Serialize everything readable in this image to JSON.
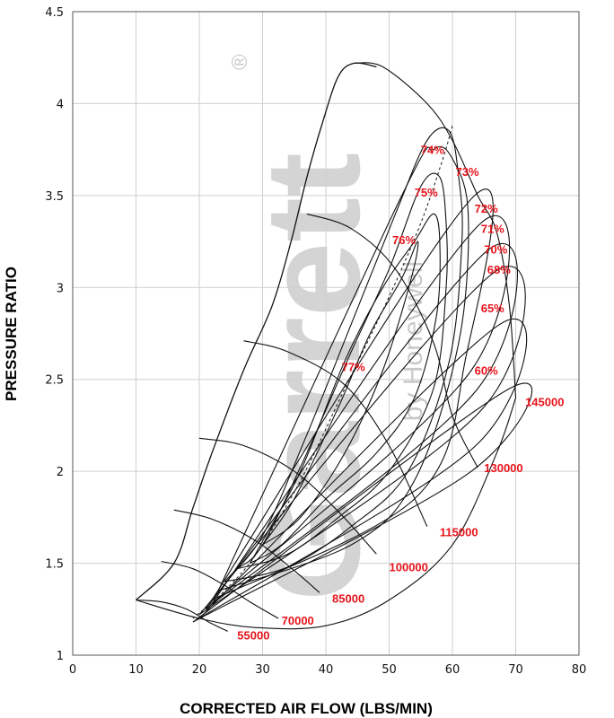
{
  "chart_data": {
    "type": "line",
    "title": "",
    "xlabel": "CORRECTED AIR FLOW (LBS/MIN)",
    "ylabel": "PRESSURE RATIO",
    "xlim": [
      0,
      80
    ],
    "ylim": [
      1,
      4.5
    ],
    "xticks": [
      0,
      10,
      20,
      30,
      40,
      50,
      60,
      70,
      80
    ],
    "yticks": [
      1,
      1.5,
      2,
      2.5,
      3,
      3.5,
      4,
      4.5
    ],
    "grid": true,
    "watermark": "Garrett by Honeywell",
    "watermark_mark": "®",
    "surge_line": [
      [
        10,
        1.3
      ],
      [
        16,
        1.5
      ],
      [
        19,
        1.8
      ],
      [
        22,
        2.1
      ],
      [
        27,
        2.55
      ],
      [
        31.5,
        2.9
      ],
      [
        34.5,
        3.25
      ],
      [
        37,
        3.6
      ],
      [
        39.5,
        3.9
      ],
      [
        42,
        4.15
      ],
      [
        44.5,
        4.22
      ],
      [
        48,
        4.2
      ]
    ],
    "speed_lines": [
      {
        "label": "55000",
        "points": [
          [
            10,
            1.3
          ],
          [
            14,
            1.29
          ],
          [
            18,
            1.25
          ],
          [
            21.5,
            1.18
          ],
          [
            24.5,
            1.13
          ]
        ]
      },
      {
        "label": "70000",
        "points": [
          [
            14,
            1.51
          ],
          [
            19,
            1.47
          ],
          [
            24,
            1.38
          ],
          [
            28,
            1.29
          ],
          [
            32.5,
            1.2
          ]
        ]
      },
      {
        "label": "85000",
        "points": [
          [
            16,
            1.79
          ],
          [
            22,
            1.74
          ],
          [
            29,
            1.62
          ],
          [
            35,
            1.46
          ],
          [
            39,
            1.34
          ]
        ]
      },
      {
        "label": "100000",
        "points": [
          [
            20,
            2.18
          ],
          [
            27,
            2.14
          ],
          [
            35,
            2.0
          ],
          [
            42,
            1.78
          ],
          [
            48,
            1.55
          ]
        ]
      },
      {
        "label": "115000",
        "points": [
          [
            27,
            2.71
          ],
          [
            34,
            2.65
          ],
          [
            43,
            2.47
          ],
          [
            50,
            2.14
          ],
          [
            56,
            1.7
          ]
        ]
      },
      {
        "label": "130000",
        "points": [
          [
            37,
            3.4
          ],
          [
            44,
            3.32
          ],
          [
            51,
            3.1
          ],
          [
            57,
            2.7
          ],
          [
            60,
            2.3
          ],
          [
            64,
            2.02
          ]
        ]
      },
      {
        "label": "145000",
        "points": [
          [
            44.5,
            4.22
          ],
          [
            49,
            4.2
          ],
          [
            56,
            4.0
          ],
          [
            60,
            3.8
          ],
          [
            64,
            3.5
          ],
          [
            67,
            3.3
          ],
          [
            69,
            2.9
          ],
          [
            70,
            2.4
          ]
        ]
      }
    ],
    "efficiency_islands": [
      {
        "label": "77%",
        "points": [
          [
            30,
            1.6
          ],
          [
            35,
            1.85
          ],
          [
            42,
            2.35
          ],
          [
            47,
            2.75
          ],
          [
            52,
            3.05
          ],
          [
            54.5,
            3.25
          ],
          [
            53.5,
            3.05
          ],
          [
            49,
            2.55
          ],
          [
            43,
            2.1
          ],
          [
            36,
            1.75
          ],
          [
            30,
            1.6
          ]
        ]
      },
      {
        "label": "76%",
        "points": [
          [
            28,
            1.5
          ],
          [
            30,
            1.62
          ],
          [
            36,
            2.0
          ],
          [
            43,
            2.6
          ],
          [
            49,
            3.0
          ],
          [
            54,
            3.25
          ],
          [
            57,
            3.4
          ],
          [
            58,
            3.25
          ],
          [
            57.5,
            2.85
          ],
          [
            54,
            2.4
          ],
          [
            48,
            2.1
          ],
          [
            40,
            1.85
          ],
          [
            33,
            1.6
          ],
          [
            28,
            1.5
          ]
        ]
      },
      {
        "label": "75%",
        "points": [
          [
            26,
            1.47
          ],
          [
            30,
            1.6
          ],
          [
            37,
            2.1
          ],
          [
            44,
            2.65
          ],
          [
            50,
            3.1
          ],
          [
            55,
            3.55
          ],
          [
            58,
            3.6
          ],
          [
            59,
            3.35
          ],
          [
            59,
            3.0
          ],
          [
            57,
            2.45
          ],
          [
            50,
            2.0
          ],
          [
            42,
            1.75
          ],
          [
            34,
            1.55
          ],
          [
            26,
            1.47
          ]
        ]
      },
      {
        "label": "74%",
        "points": [
          [
            24,
            1.4
          ],
          [
            30,
            1.65
          ],
          [
            37,
            2.2
          ],
          [
            44,
            2.8
          ],
          [
            51,
            3.4
          ],
          [
            56,
            3.8
          ],
          [
            59.5,
            3.85
          ],
          [
            61,
            3.6
          ],
          [
            61.5,
            3.25
          ],
          [
            59.5,
            2.6
          ],
          [
            53,
            2.0
          ],
          [
            44,
            1.7
          ],
          [
            34,
            1.48
          ],
          [
            24,
            1.4
          ]
        ]
      },
      {
        "label": "73%",
        "points": [
          [
            23,
            1.35
          ],
          [
            52,
            3.5
          ],
          [
            57,
            3.75
          ],
          [
            60,
            3.7
          ],
          [
            62.5,
            3.4
          ],
          [
            61,
            2.7
          ],
          [
            54,
            1.95
          ],
          [
            44,
            1.6
          ],
          [
            23,
            1.35
          ]
        ]
      },
      {
        "label": "72%",
        "points": [
          [
            22,
            1.3
          ],
          [
            63.5,
            3.5
          ],
          [
            62,
            2.6
          ],
          [
            54,
            1.85
          ],
          [
            22,
            1.3
          ]
        ]
      },
      {
        "label": "71%",
        "points": [
          [
            22,
            1.28
          ],
          [
            64.5,
            3.35
          ],
          [
            63,
            2.55
          ],
          [
            22,
            1.28
          ]
        ]
      },
      {
        "label": "70%",
        "points": [
          [
            21,
            1.25
          ],
          [
            65.5,
            3.2
          ],
          [
            64,
            2.45
          ],
          [
            21,
            1.25
          ]
        ]
      },
      {
        "label": "68%",
        "points": [
          [
            20,
            1.22
          ],
          [
            66.5,
            3.08
          ],
          [
            65,
            2.35
          ],
          [
            20,
            1.22
          ]
        ]
      },
      {
        "label": "65%",
        "points": [
          [
            20,
            1.2
          ],
          [
            67.5,
            2.8
          ],
          [
            64,
            2.15
          ],
          [
            20,
            1.2
          ]
        ]
      },
      {
        "label": "60%",
        "points": [
          [
            19,
            1.18
          ],
          [
            69,
            2.45
          ],
          [
            63,
            2.0
          ],
          [
            19,
            1.18
          ]
        ]
      }
    ],
    "speed_label_positions": [
      {
        "label": "55000",
        "x": 26,
        "y": 1.11
      },
      {
        "label": "70000",
        "x": 33,
        "y": 1.19
      },
      {
        "label": "85000",
        "x": 41,
        "y": 1.31
      },
      {
        "label": "100000",
        "x": 50,
        "y": 1.48
      },
      {
        "label": "115000",
        "x": 58,
        "y": 1.67
      },
      {
        "label": "130000",
        "x": 65,
        "y": 2.02
      },
      {
        "label": "145000",
        "x": 71.5,
        "y": 2.38
      }
    ],
    "island_label_positions": [
      {
        "label": "77%",
        "x": 42.5,
        "y": 2.57
      },
      {
        "label": "76%",
        "x": 50.5,
        "y": 3.26
      },
      {
        "label": "75%",
        "x": 54,
        "y": 3.52
      },
      {
        "label": "74%",
        "x": 55,
        "y": 3.75
      },
      {
        "label": "73%",
        "x": 60.5,
        "y": 3.63
      },
      {
        "label": "72%",
        "x": 63.5,
        "y": 3.43
      },
      {
        "label": "71%",
        "x": 64.5,
        "y": 3.32
      },
      {
        "label": "70%",
        "x": 65,
        "y": 3.21
      },
      {
        "label": "68%",
        "x": 65.5,
        "y": 3.1
      },
      {
        "label": "65%",
        "x": 64.5,
        "y": 2.89
      },
      {
        "label": "60%",
        "x": 63.5,
        "y": 2.55
      }
    ],
    "choke_line": [
      [
        10,
        1.3
      ],
      [
        20,
        1.2
      ],
      [
        29,
        1.15
      ],
      [
        40,
        1.16
      ],
      [
        50,
        1.3
      ],
      [
        60,
        1.6
      ],
      [
        67,
        2.1
      ],
      [
        70,
        2.4
      ]
    ],
    "max_efficiency_path": [
      [
        19,
        1.2
      ],
      [
        24,
        1.35
      ],
      [
        29,
        1.55
      ],
      [
        36,
        1.95
      ],
      [
        43,
        2.45
      ],
      [
        50,
        2.95
      ],
      [
        55,
        3.35
      ],
      [
        58.5,
        3.7
      ],
      [
        60,
        3.88
      ]
    ]
  }
}
